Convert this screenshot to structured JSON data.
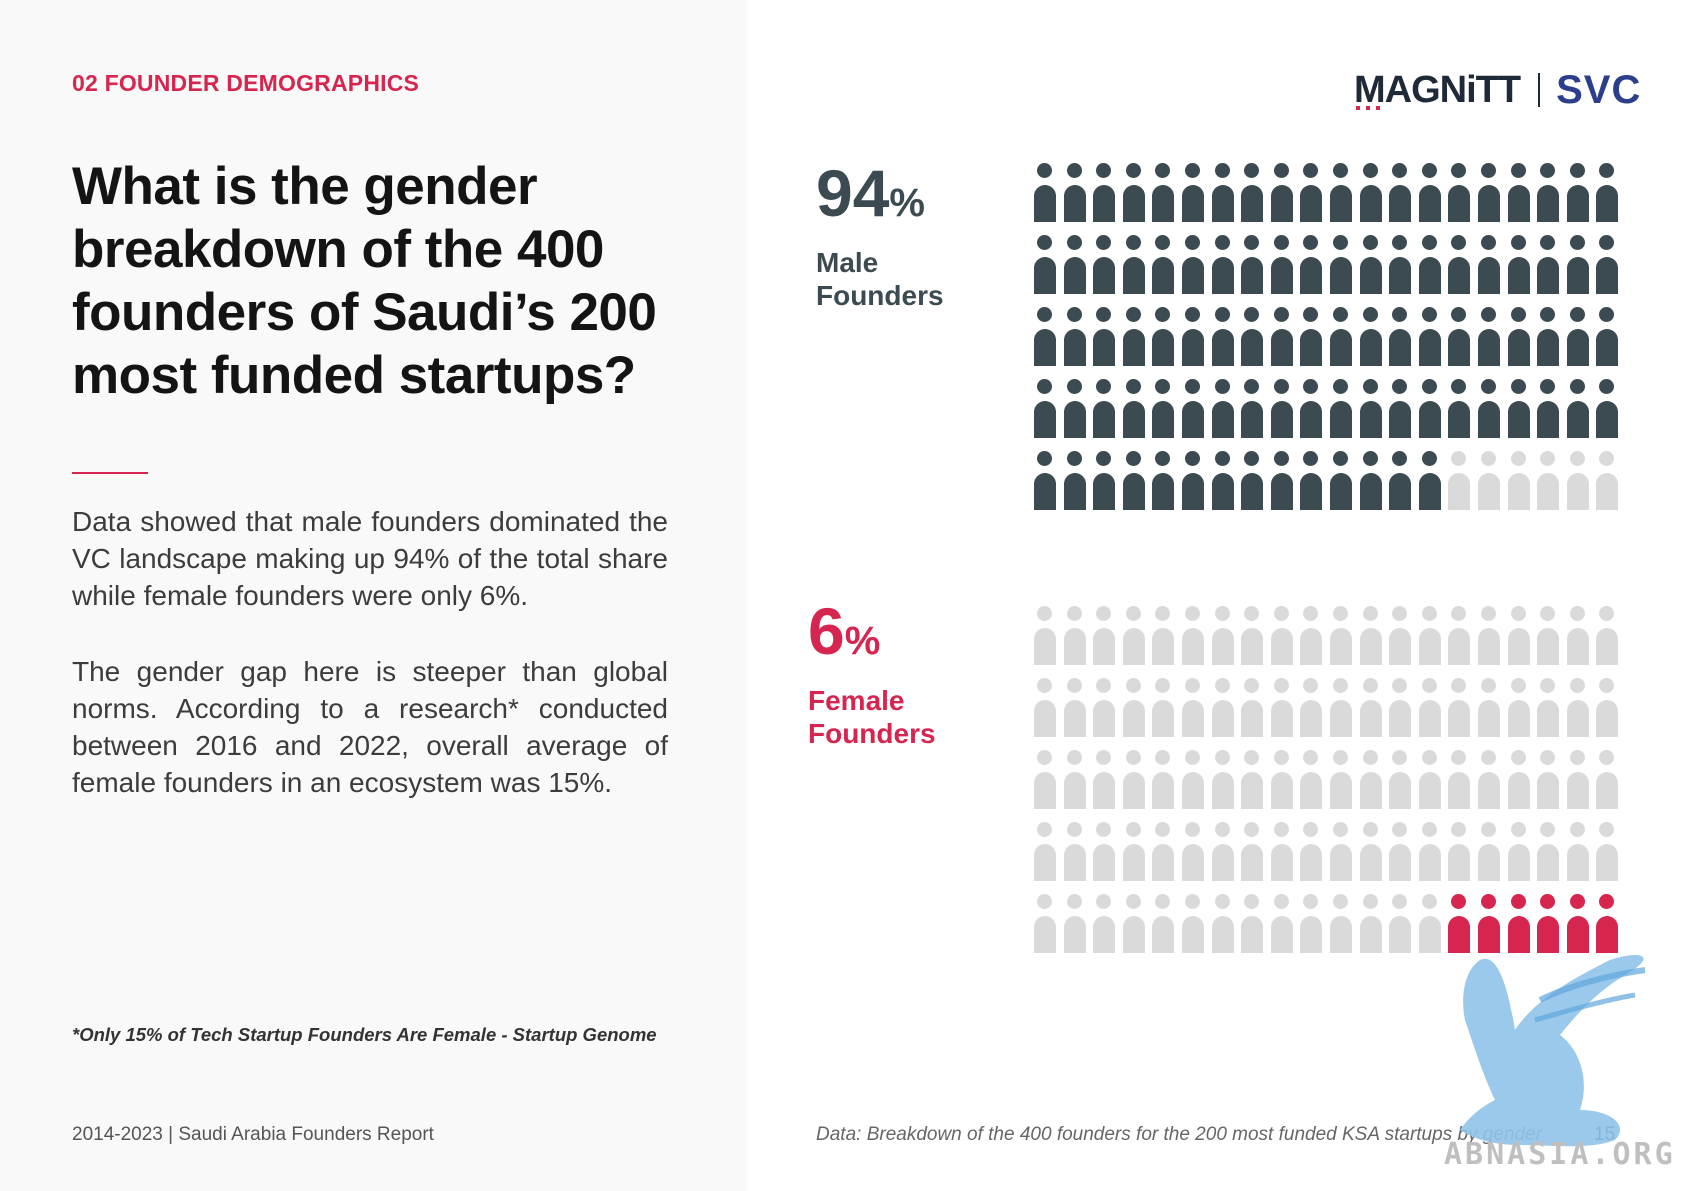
{
  "section_label": "02 FOUNDER DEMOGRAPHICS",
  "headline": "What is the gender breakdown of the 400 founders of Saudi’s 200 most funded startups?",
  "paragraphs": [
    "Data showed that male founders dominated the VC landscape making up 94% of the total share while female founders were only 6%.",
    "The gender gap here is steeper than global norms. According to a research* conducted between 2016 and 2022, overall average of female founders in an ecosystem was 15%."
  ],
  "footnote": "*Only 15% of Tech Startup Founders Are Female - Startup Genome",
  "report_name": "2014-2023 | Saudi Arabia Founders Report",
  "logos": {
    "magnitt": "MAGNiTT",
    "svc": "SVC"
  },
  "male": {
    "number": "94",
    "percent_sign": "%",
    "label_line1": "Male",
    "label_line2": "Founders",
    "icons_filled": 94,
    "icons_total": 100,
    "color": "#3c4a52"
  },
  "female": {
    "number": "6",
    "percent_sign": "%",
    "label_line1": "Female",
    "label_line2": "Founders",
    "icons_filled": 6,
    "icons_total": 100,
    "color": "#d6254f"
  },
  "empty_icon_color": "#dadada",
  "source_note": "Data: Breakdown of the 400 founders for the 200 most funded KSA startups by gender",
  "page_number": "15",
  "watermark": "ABNASIA.ORG"
}
